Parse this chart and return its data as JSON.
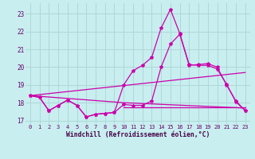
{
  "background_color": "#c8eef0",
  "grid_color": "#b0d8d8",
  "line_color": "#cc00aa",
  "xlabel": "Windchill (Refroidissement éolien,°C)",
  "xlim": [
    -0.5,
    23.5
  ],
  "ylim": [
    16.8,
    23.6
  ],
  "yticks": [
    17,
    18,
    19,
    20,
    21,
    22,
    23
  ],
  "xticks": [
    0,
    1,
    2,
    3,
    4,
    5,
    6,
    7,
    8,
    9,
    10,
    11,
    12,
    13,
    14,
    15,
    16,
    17,
    18,
    19,
    20,
    21,
    22,
    23
  ],
  "line1_x": [
    0,
    1,
    2,
    3,
    4,
    5,
    6,
    7,
    8,
    9,
    10,
    11,
    12,
    13,
    14,
    15,
    16,
    17,
    18,
    19,
    20,
    21,
    22,
    23
  ],
  "line1_y": [
    18.4,
    18.3,
    17.55,
    17.85,
    18.15,
    17.85,
    17.2,
    17.35,
    17.4,
    17.45,
    17.9,
    17.85,
    17.85,
    18.1,
    20.0,
    21.3,
    21.85,
    20.15,
    20.1,
    20.1,
    19.9,
    19.05,
    18.05,
    17.55
  ],
  "line2_x": [
    0,
    1,
    2,
    3,
    4,
    5,
    6,
    7,
    8,
    9,
    10,
    11,
    12,
    13,
    14,
    15,
    16,
    17,
    18,
    19,
    20,
    21,
    22,
    23
  ],
  "line2_y": [
    18.4,
    18.3,
    17.55,
    17.85,
    18.15,
    17.85,
    17.2,
    17.35,
    17.4,
    17.45,
    19.0,
    19.8,
    20.1,
    20.55,
    22.2,
    23.25,
    21.9,
    20.1,
    20.15,
    20.2,
    20.0,
    19.0,
    18.1,
    17.55
  ],
  "line3_x": [
    0,
    23
  ],
  "line3_y": [
    18.4,
    19.7
  ],
  "line4_x": [
    0,
    10,
    23
  ],
  "line4_y": [
    18.4,
    18.0,
    17.7
  ],
  "line5_x": [
    10,
    21,
    23
  ],
  "line5_y": [
    17.75,
    17.75,
    17.75
  ]
}
